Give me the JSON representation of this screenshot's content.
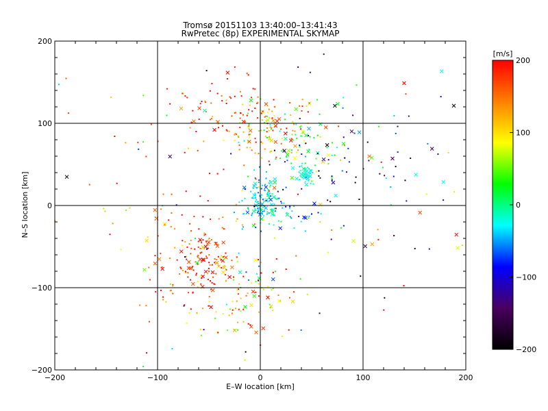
{
  "chart_data": {
    "type": "scatter",
    "title": "Tromsø 20151103 13:40:00–13:41:43",
    "subtitle": "RwPretec (8p) EXPERIMENTAL SKYMAP",
    "xlabel": "E–W location [km]",
    "ylabel": "N–S location [km]",
    "xlim": [
      -200,
      200
    ],
    "ylim": [
      -200,
      200
    ],
    "xticks": [
      "-200",
      "-100",
      "0",
      "100",
      "200"
    ],
    "yticks": [
      "-200",
      "-100",
      "0",
      "100",
      "200"
    ],
    "grid": true,
    "colorbar": {
      "label": "[m/s]",
      "range": [
        -200,
        200
      ],
      "ticks": [
        "200",
        "100",
        "0",
        "-100",
        "-200"
      ],
      "colormap": [
        "#000000",
        "#4b0060",
        "#0000ff",
        "#00ffff",
        "#00ff00",
        "#ffff00",
        "#ff8000",
        "#ff0000"
      ]
    },
    "marker_types": [
      "dot",
      "x"
    ],
    "clusters": [
      {
        "x": 10,
        "y": 95,
        "sx": 25,
        "sy": 20,
        "n": 140,
        "v": 120,
        "vs": 60
      },
      {
        "x": -40,
        "y": 115,
        "sx": 30,
        "sy": 20,
        "n": 60,
        "v": 180,
        "vs": 30
      },
      {
        "x": 0,
        "y": 5,
        "sx": 10,
        "sy": 15,
        "n": 130,
        "v": -30,
        "vs": 30
      },
      {
        "x": 25,
        "y": -10,
        "sx": 20,
        "sy": 15,
        "n": 40,
        "v": -40,
        "vs": 40
      },
      {
        "x": 45,
        "y": 40,
        "sx": 5,
        "sy": 5,
        "n": 45,
        "v": -20,
        "vs": 10
      },
      {
        "x": 40,
        "y": 70,
        "sx": 20,
        "sy": 20,
        "n": 50,
        "v": 30,
        "vs": 40
      },
      {
        "x": -55,
        "y": -70,
        "sx": 20,
        "sy": 25,
        "n": 130,
        "v": 180,
        "vs": 40
      },
      {
        "x": -20,
        "y": -110,
        "sx": 30,
        "sy": 30,
        "n": 110,
        "v": 100,
        "vs": 80
      },
      {
        "x": 95,
        "y": 60,
        "sx": 50,
        "sy": 45,
        "n": 80,
        "v": -120,
        "vs": 80
      },
      {
        "x": -100,
        "y": -20,
        "sx": 60,
        "sy": 70,
        "n": 70,
        "v": 150,
        "vs": 60
      },
      {
        "x": 0,
        "y": 0,
        "sx": 110,
        "sy": 110,
        "n": 90,
        "v": 20,
        "vs": 150
      }
    ]
  }
}
